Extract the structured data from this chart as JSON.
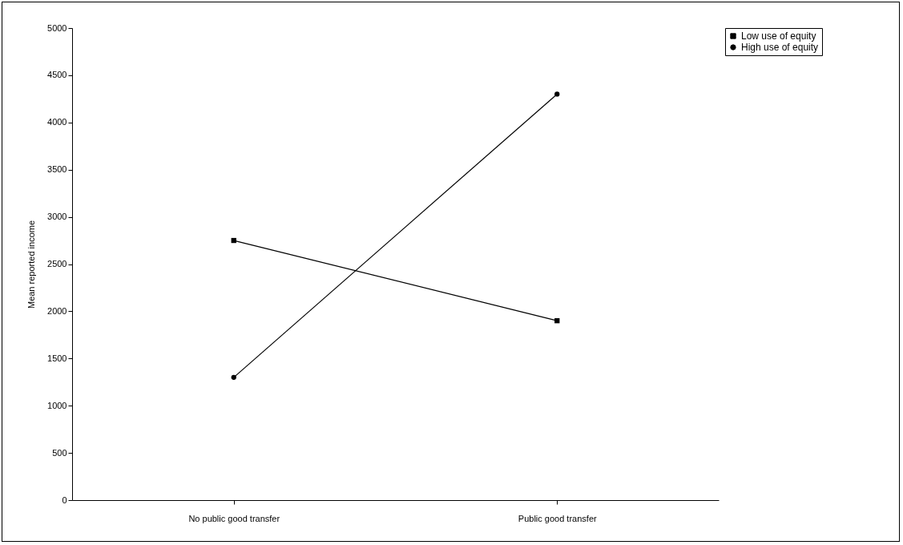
{
  "chart_data": {
    "type": "line",
    "ylabel": "Mean reported income",
    "categories": [
      "No public good transfer",
      "Public good transfer"
    ],
    "series": [
      {
        "name": "Low use of equity",
        "color": "#000000",
        "values": [
          2750,
          1900
        ],
        "marker": "square"
      },
      {
        "name": "High use of equity",
        "color": "#000000",
        "values": [
          1300,
          4300
        ],
        "marker": "circle"
      }
    ],
    "ylim": [
      0,
      5000
    ],
    "yticks": [
      0,
      500,
      1000,
      1500,
      2000,
      2500,
      3000,
      3500,
      4000,
      4500,
      5000
    ],
    "grid": false,
    "legend": "right",
    "line_style": "solid"
  }
}
